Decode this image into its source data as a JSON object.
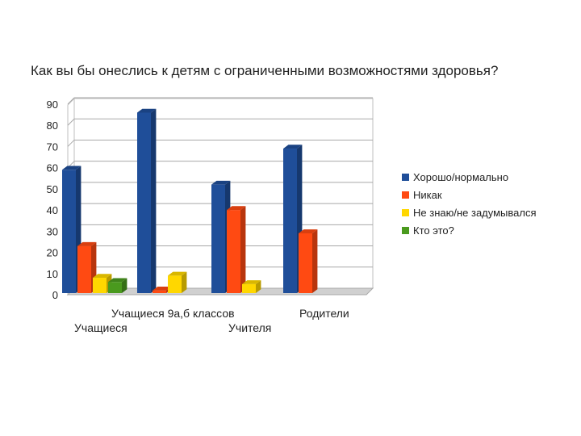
{
  "chart_data": {
    "type": "bar",
    "title": "Как вы бы онеслись к детям с ограниченными возможностями здоровья?",
    "categories": [
      "Учащиеся",
      "Учащиеся 9а,б классов",
      "Учителя",
      "Родители"
    ],
    "series": [
      {
        "name": "Хорошо/нормально",
        "values": [
          59,
          86,
          52,
          69
        ],
        "color": "#1f4e99"
      },
      {
        "name": "Никак",
        "values": [
          23,
          2,
          40,
          29
        ],
        "color": "#ff4a12"
      },
      {
        "name": "Не знаю/не задумывался",
        "values": [
          8,
          9,
          5,
          null
        ],
        "color": "#ffd700"
      },
      {
        "name": "Кто это?",
        "values": [
          6,
          null,
          null,
          null
        ],
        "color": "#4a9a1e"
      }
    ],
    "ylim": [
      0,
      90
    ],
    "yticks": [
      "0",
      "10",
      "20",
      "30",
      "40",
      "50",
      "60",
      "70",
      "80",
      "90"
    ],
    "grid": true,
    "legend_position": "right"
  }
}
